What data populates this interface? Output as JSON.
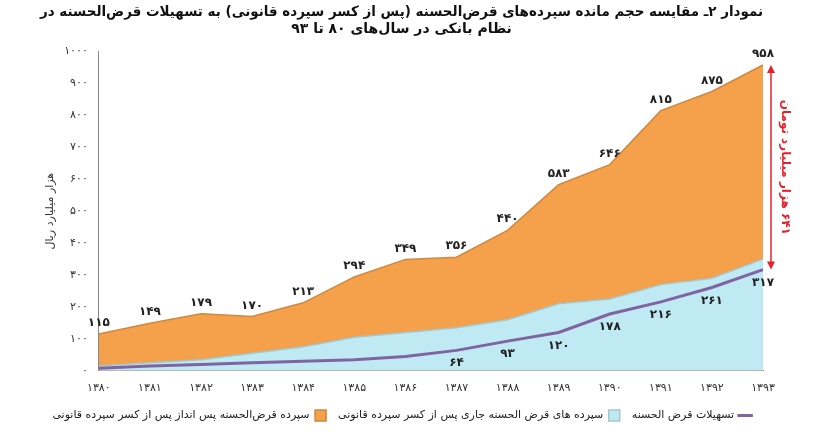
{
  "chart_data": {
    "type": "area",
    "title": [
      "نمودار ۲ـ مقایسه حجم مانده سپرده‌های قرض‌الحسنه (پس از کسر سپرده قانونی) به تسهیلات قرض‌الحسنه در",
      "نظام بانکی در سال‌های ۸۰ تا ۹۳"
    ],
    "y_label": "هزار میلیارد ریال",
    "categories": [
      "۱۳۸۰",
      "۱۳۸۱",
      "۱۳۸۲",
      "۱۳۸۳",
      "۱۳۸۴",
      "۱۳۸۵",
      "۱۳۸۶",
      "۱۳۸۷",
      "۱۳۸۸",
      "۱۳۸۹",
      "۱۳۹۰",
      "۱۳۹۱",
      "۱۳۹۲",
      "۱۳۹۳"
    ],
    "series": [
      {
        "name": "سپرده قرض‌الحسنه پس انداز پس از کسر سپرده قانونی",
        "color": "#f5a04a",
        "type": "area",
        "values": [
          115,
          149,
          179,
          170,
          213,
          294,
          349,
          356,
          440,
          583,
          646,
          815,
          875,
          958
        ],
        "value_labels": [
          "۱۱۵",
          "۱۴۹",
          "۱۷۹",
          "۱۷۰",
          "۲۱۳",
          "۲۹۴",
          "۳۴۹",
          "۳۵۶",
          "۴۴۰",
          "۵۸۳",
          "۶۴۶",
          "۸۱۵",
          "۸۷۵",
          "۹۵۸"
        ]
      },
      {
        "name": "سپرده های قرض الحسنه جاری پس از کسر سپرده قانونی",
        "color": "#bfeaf3",
        "type": "area",
        "values": [
          15,
          25,
          35,
          55,
          75,
          105,
          120,
          135,
          160,
          210,
          225,
          270,
          290,
          350
        ]
      },
      {
        "name": "تسهیلات قرض الحسنه",
        "color": "#8064a2",
        "type": "line",
        "values": [
          8,
          15,
          20,
          25,
          30,
          35,
          45,
          64,
          93,
          120,
          178,
          216,
          261,
          317
        ],
        "value_labels": [
          null,
          null,
          null,
          null,
          null,
          null,
          null,
          "۶۴",
          "۹۳",
          "۱۲۰",
          "۱۷۸",
          "۲۱۶",
          "۲۶۱",
          "۳۱۷"
        ]
      }
    ],
    "ylim": [
      0,
      1000
    ],
    "yticks": [
      {
        "value": 0,
        "label": "۰"
      },
      {
        "value": 100,
        "label": "۱۰۰"
      },
      {
        "value": 200,
        "label": "۲۰۰"
      },
      {
        "value": 300,
        "label": "۳۰۰"
      },
      {
        "value": 400,
        "label": "۴۰۰"
      },
      {
        "value": 500,
        "label": "۵۰۰"
      },
      {
        "value": 600,
        "label": "۶۰۰"
      },
      {
        "value": 700,
        "label": "۷۰۰"
      },
      {
        "value": 800,
        "label": "۸۰۰"
      },
      {
        "value": 900,
        "label": "۹۰۰"
      },
      {
        "value": 1000,
        "label": "۱۰۰۰"
      }
    ],
    "grid": false,
    "legend": "bottom",
    "data_labels": true,
    "annotations": [
      {
        "text": "۶۴۱ هزار میلیارد تومان"
      }
    ]
  }
}
